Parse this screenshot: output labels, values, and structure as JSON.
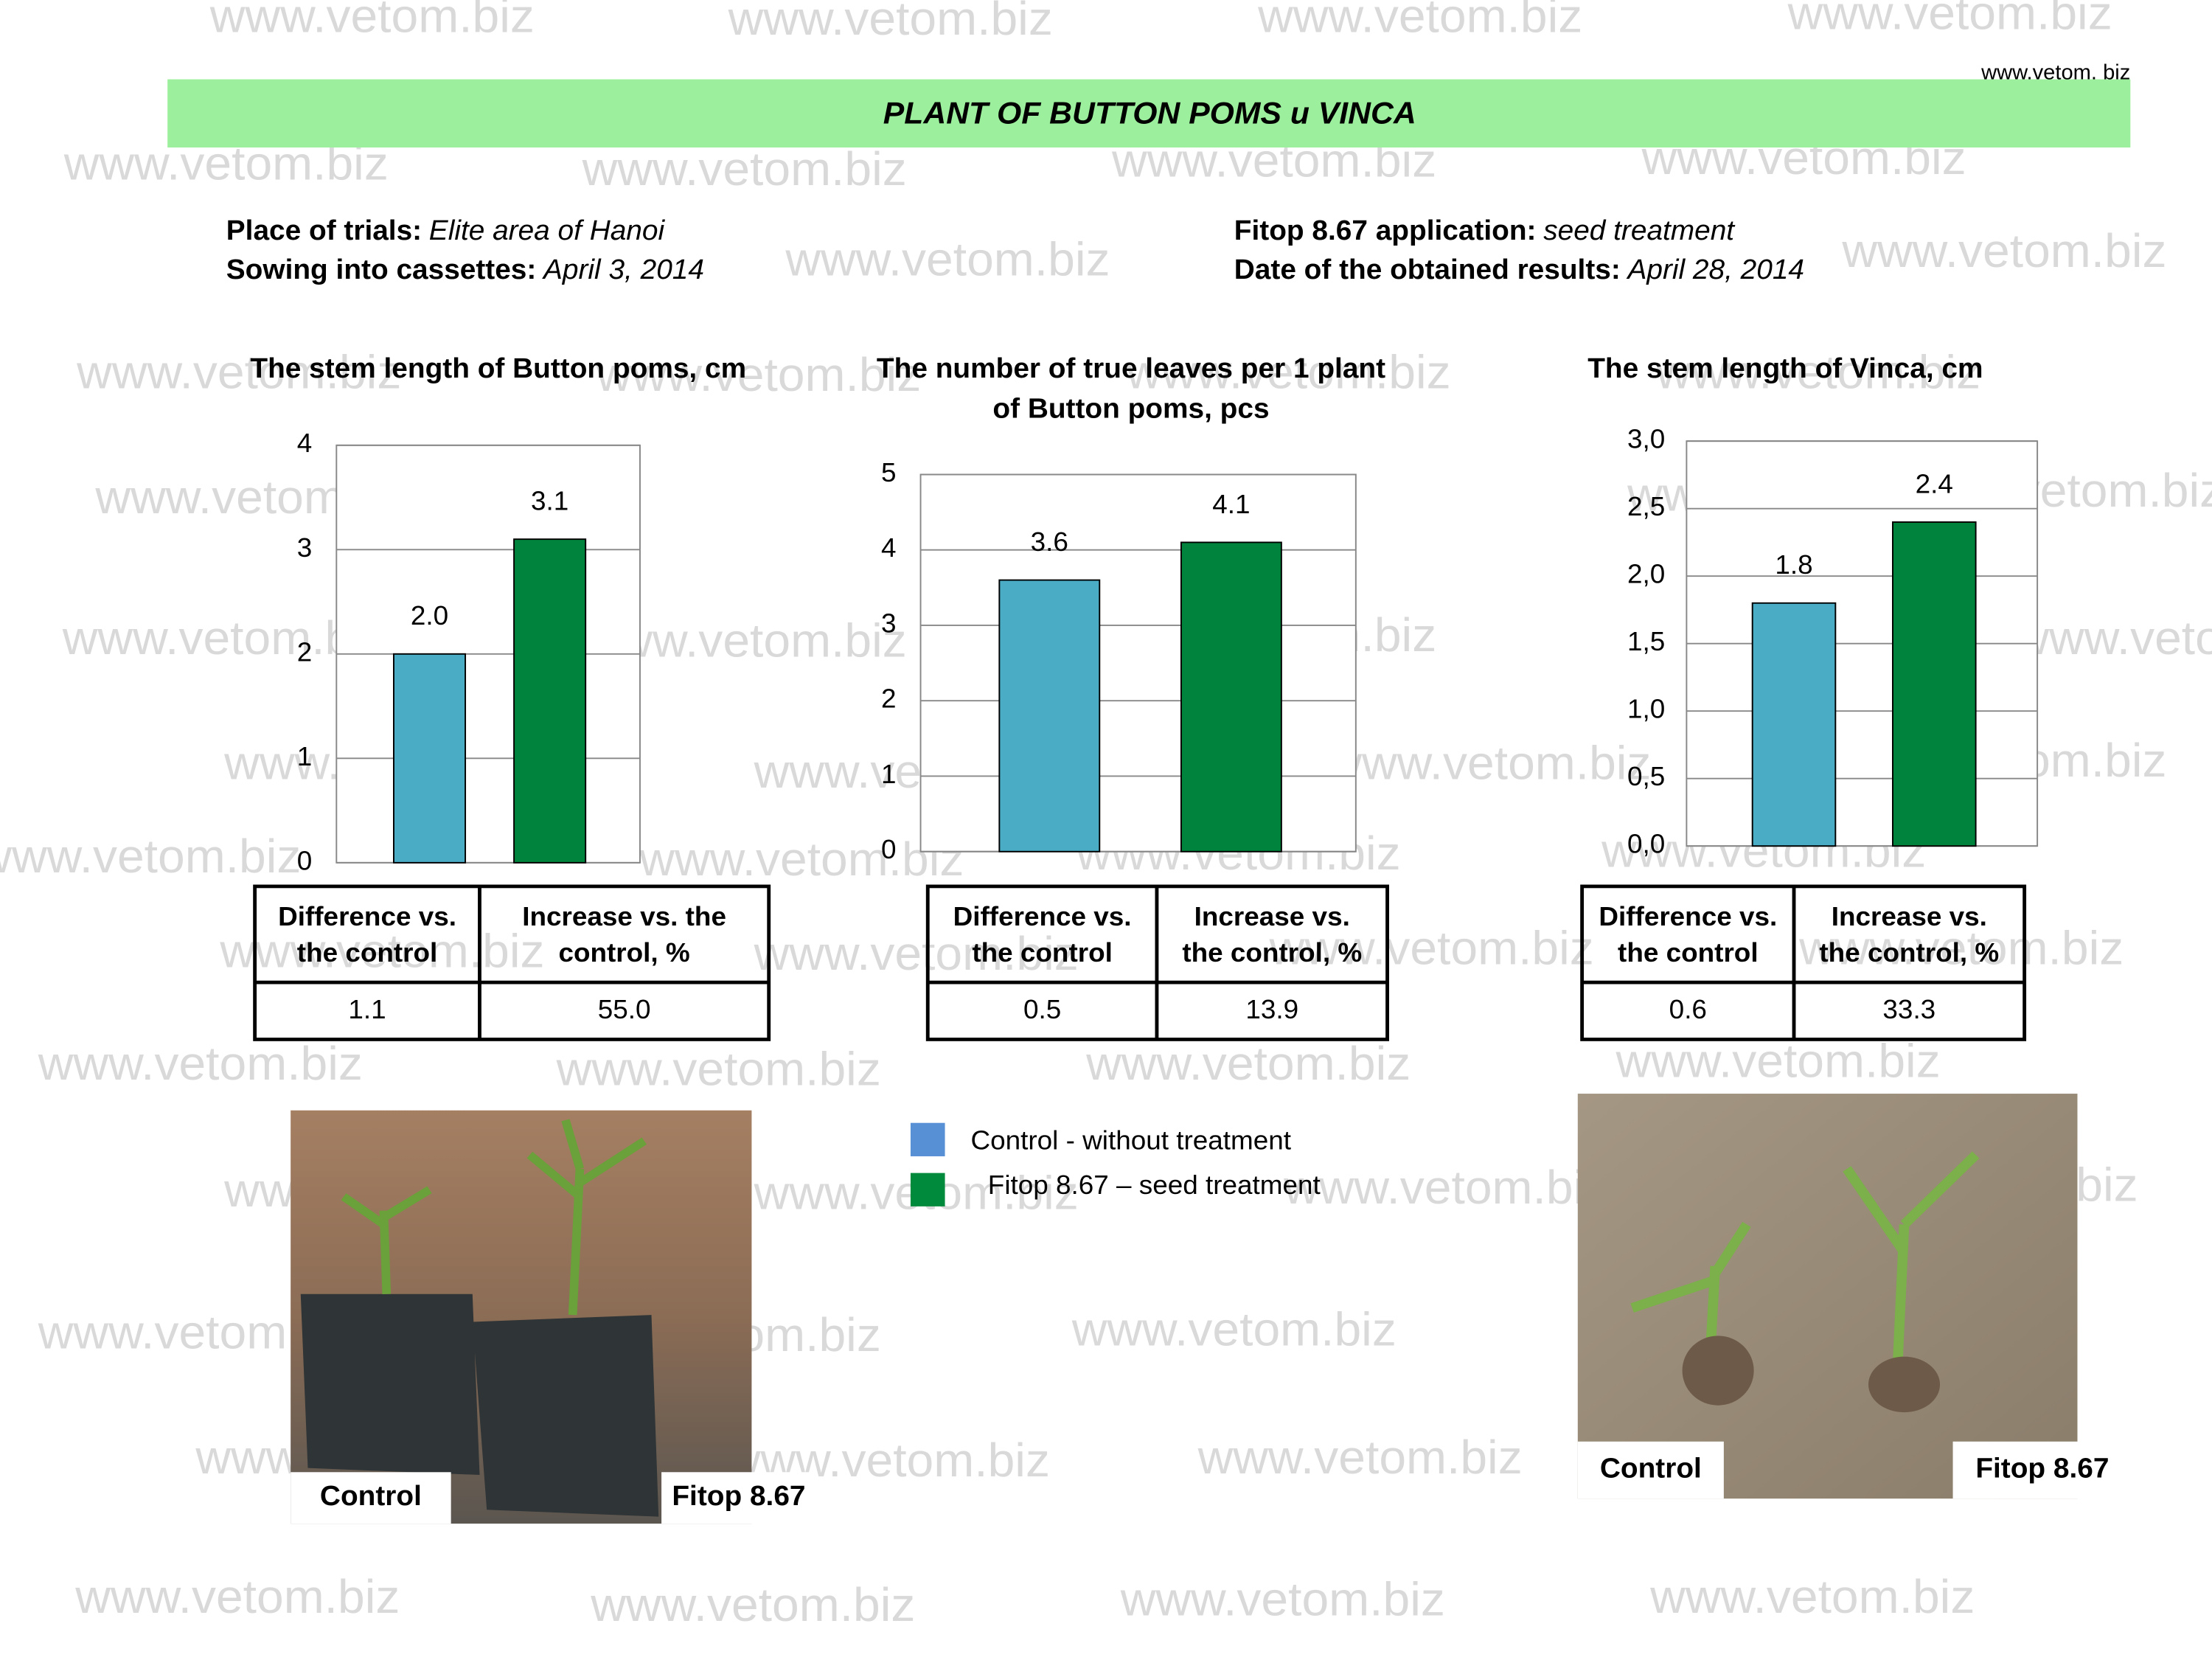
{
  "header": {
    "site": "www.vetom. biz",
    "title": "PLANT OF BUTTON POMS u VINCA"
  },
  "watermark": "www.vetom.biz",
  "info": {
    "left": [
      {
        "label": "Place of trials:",
        "value": "Elite area of Hanoi"
      },
      {
        "label": "Sowing into cassettes:",
        "value": "April  3, 2014"
      }
    ],
    "right": [
      {
        "label": "Fitop 8.67 application:",
        "value": "seed treatment"
      },
      {
        "label": "Date of  the obtained results:",
        "value": "April 28, 2014"
      }
    ]
  },
  "legend": [
    {
      "name": "Control - without treatment",
      "color": "#5890d6"
    },
    {
      "name": "Fitop 8.67 – seed treatment",
      "color": "#008a3c"
    }
  ],
  "chart_data": [
    {
      "type": "bar",
      "title": [
        "The stem length of Button poms, cm"
      ],
      "values": [
        2.0,
        3.1
      ],
      "value_labels": [
        "2.0",
        "3.1"
      ],
      "colors": [
        "#4bacc6",
        "#00843d"
      ],
      "ylim": [
        0,
        4
      ],
      "yticks": [
        0,
        1,
        2,
        3,
        4
      ],
      "grid": true
    },
    {
      "type": "bar",
      "title": [
        "The number of true leaves per 1 plant",
        "of Button poms, pcs"
      ],
      "values": [
        3.6,
        4.1
      ],
      "colors": [
        "#4bacc6",
        "#00843d"
      ],
      "ylim": [
        0,
        5
      ],
      "yticks": [
        0,
        1,
        2,
        3,
        4,
        5
      ],
      "grid": true
    },
    {
      "type": "bar",
      "title": [
        "The stem length of Vinca,  cm"
      ],
      "values": [
        1.8,
        2.4
      ],
      "colors": [
        "#4bacc6",
        "#00843d"
      ],
      "ylim": [
        0,
        3
      ],
      "yticks": [
        {
          "value": 0,
          "label": "0,0"
        },
        {
          "value": 0.5,
          "label": "0,5"
        },
        {
          "value": 1,
          "label": "1,0"
        },
        {
          "value": 1.5,
          "label": "1,5"
        },
        {
          "value": 2,
          "label": "2,0"
        },
        {
          "value": 2.5,
          "label": "2,5"
        },
        {
          "value": 3,
          "label": "3,0"
        }
      ],
      "grid": true
    }
  ],
  "tables": [
    {
      "header": [
        [
          "Difference vs.",
          "the control"
        ],
        [
          "Increase vs. the",
          "control, %"
        ]
      ],
      "row": [
        "1.1",
        "55.0"
      ]
    },
    {
      "header": [
        [
          "Difference vs.",
          "the control"
        ],
        [
          "Increase vs.",
          "the control, %"
        ]
      ],
      "row": [
        "0.5",
        "13.9"
      ]
    },
    {
      "header": [
        [
          "Difference vs.",
          "the control"
        ],
        [
          "Increase vs.",
          "the control, %"
        ]
      ],
      "row": [
        "0.6",
        "33.3"
      ]
    }
  ],
  "photos": [
    {
      "captions": [
        "Control",
        "Fitop 8.67"
      ]
    },
    {
      "captions": [
        "Control",
        "Fitop 8.67"
      ]
    }
  ]
}
